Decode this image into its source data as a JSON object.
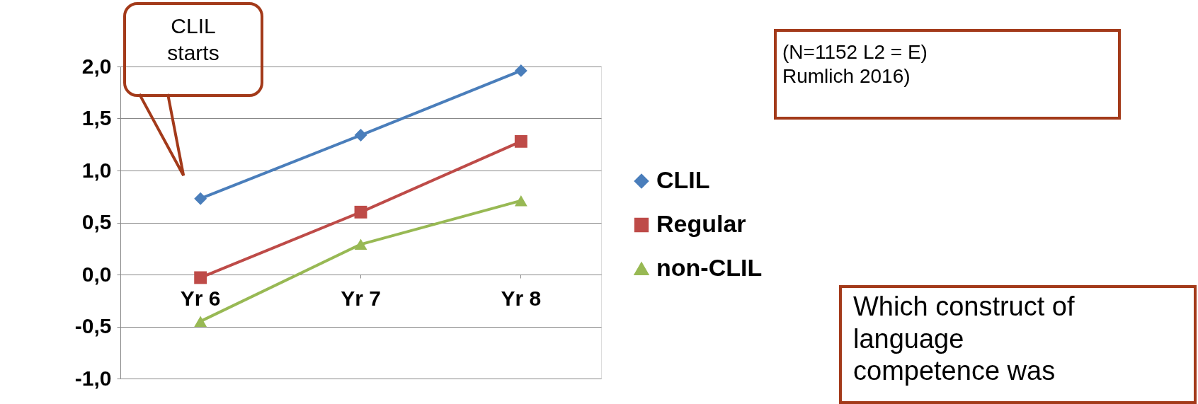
{
  "chart_data": {
    "type": "line",
    "categories": [
      "Yr 6",
      "Yr 7",
      "Yr 8"
    ],
    "series": [
      {
        "name": "CLIL",
        "color": "#4a7ebb",
        "marker": "diamond",
        "values": [
          0.73,
          1.34,
          1.96
        ]
      },
      {
        "name": "Regular",
        "color": "#be4b48",
        "marker": "square",
        "values": [
          -0.03,
          0.6,
          1.28
        ]
      },
      {
        "name": "non-CLIL",
        "color": "#98b954",
        "marker": "triangle",
        "values": [
          -0.45,
          0.29,
          0.71
        ]
      }
    ],
    "ylim": [
      -1.0,
      2.0
    ],
    "yticks": [
      {
        "value": -1.0,
        "label": "-1,0"
      },
      {
        "value": -0.5,
        "label": "-0,5"
      },
      {
        "value": 0.0,
        "label": "0,0"
      },
      {
        "value": 0.5,
        "label": "0,5"
      },
      {
        "value": 1.0,
        "label": "1,0"
      },
      {
        "value": 1.5,
        "label": "1,5"
      },
      {
        "value": 2.0,
        "label": "2,0"
      }
    ],
    "grid": "y",
    "legend": "right",
    "line_style": "solid",
    "annotations": [
      "CLIL starts",
      "(N=1152  L2 = E)\nRumlich 2016)",
      "Which construct of\nlanguage\ncompetence was"
    ]
  }
}
